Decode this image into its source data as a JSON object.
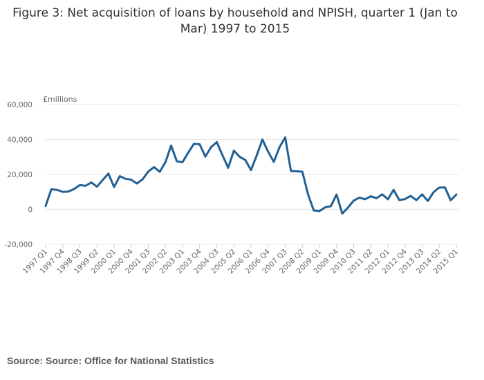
{
  "title": "Figure 3: Net acquisition of loans by household and NPISH, quarter 1 (Jan to Mar) 1997 to 2015",
  "source": "Source: Source: Office for National Statistics",
  "colors": {
    "line": "#206095",
    "grid": "#e6e6e6",
    "axis": "#cccccc",
    "text": "#666666"
  },
  "chart_data": {
    "type": "line",
    "title": "Figure 3: Net acquisition of loans by household and NPISH, quarter 1 (Jan to Mar) 1997 to 2015",
    "ylabel": "£millions",
    "xlabel": "",
    "ylim": [
      -20000,
      60000
    ],
    "yticks": [
      -20000,
      0,
      20000,
      40000,
      60000
    ],
    "ytick_labels": [
      "-20,000",
      "0",
      "20,000",
      "40,000",
      "60,000"
    ],
    "grid": true,
    "legend": "none",
    "x": [
      "1997 Q1",
      "1997 Q2",
      "1997 Q3",
      "1997 Q4",
      "1998 Q1",
      "1998 Q2",
      "1998 Q3",
      "1998 Q4",
      "1999 Q1",
      "1999 Q2",
      "1999 Q3",
      "1999 Q4",
      "2000 Q1",
      "2000 Q2",
      "2000 Q3",
      "2000 Q4",
      "2001 Q1",
      "2001 Q2",
      "2001 Q3",
      "2001 Q4",
      "2002 Q1",
      "2002 Q2",
      "2002 Q3",
      "2002 Q4",
      "2003 Q1",
      "2003 Q2",
      "2003 Q3",
      "2003 Q4",
      "2004 Q1",
      "2004 Q2",
      "2004 Q3",
      "2004 Q4",
      "2005 Q1",
      "2005 Q2",
      "2005 Q3",
      "2005 Q4",
      "2006 Q1",
      "2006 Q2",
      "2006 Q3",
      "2006 Q4",
      "2007 Q1",
      "2007 Q2",
      "2007 Q3",
      "2007 Q4",
      "2008 Q1",
      "2008 Q2",
      "2008 Q3",
      "2008 Q4",
      "2009 Q1",
      "2009 Q2",
      "2009 Q3",
      "2009 Q4",
      "2010 Q1",
      "2010 Q2",
      "2010 Q3",
      "2010 Q4",
      "2011 Q1",
      "2011 Q2",
      "2011 Q3",
      "2011 Q4",
      "2012 Q1",
      "2012 Q2",
      "2012 Q3",
      "2012 Q4",
      "2013 Q1",
      "2013 Q2",
      "2013 Q3",
      "2013 Q4",
      "2014 Q1",
      "2014 Q2",
      "2014 Q3",
      "2014 Q4",
      "2015 Q1"
    ],
    "xtick_labels": [
      "1997 Q1",
      "1997 Q4",
      "1998 Q3",
      "1999 Q2",
      "2000 Q1",
      "2000 Q4",
      "2001 Q3",
      "2002 Q2",
      "2003 Q1",
      "2003 Q4",
      "2004 Q3",
      "2005 Q2",
      "2006 Q1",
      "2006 Q4",
      "2007 Q3",
      "2008 Q2",
      "2009 Q1",
      "2009 Q4",
      "2010 Q3",
      "2011 Q2",
      "2012 Q1",
      "2012 Q4",
      "2013 Q3",
      "2014 Q2",
      "2015 Q1"
    ],
    "series": [
      {
        "values": [
          2000,
          11500,
          11200,
          10000,
          10200,
          11700,
          13900,
          13500,
          15400,
          13000,
          16800,
          20500,
          12800,
          19000,
          17500,
          17000,
          14800,
          17200,
          21700,
          24200,
          21500,
          27000,
          36500,
          27500,
          27000,
          32500,
          37500,
          37300,
          30200,
          35600,
          38500,
          31000,
          23800,
          33600,
          30100,
          28300,
          22500,
          30800,
          40000,
          33000,
          27200,
          35600,
          41200,
          22000,
          21800,
          21600,
          8600,
          -600,
          -1000,
          1200,
          1800,
          8500,
          -2400,
          1000,
          5000,
          6700,
          5800,
          7500,
          6400,
          8600,
          5800,
          11200,
          5300,
          5900,
          7700,
          5300,
          8600,
          4800,
          9800,
          12500,
          12600,
          5200,
          8500
        ]
      }
    ]
  }
}
